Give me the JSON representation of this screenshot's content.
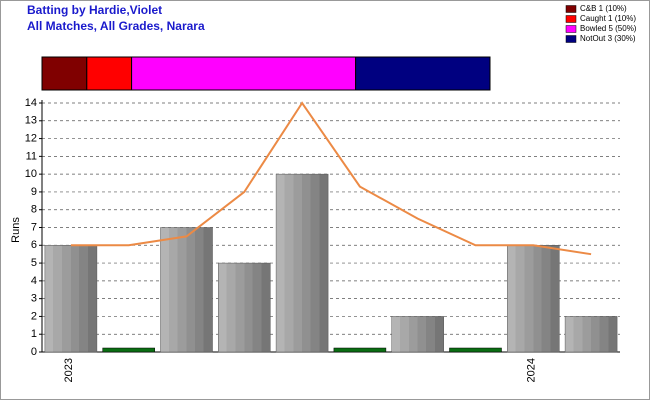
{
  "chart_data": [
    {
      "type": "stacked_hbar",
      "title": "Batting by Hardie,Violet",
      "subtitle": "All Matches, All Grades, Narara",
      "series": [
        {
          "name": "C&B 1 (10%)",
          "color": "#800000",
          "values": [
            10
          ]
        },
        {
          "name": "Caught 1 (10%)",
          "color": "#ff0000",
          "values": [
            10
          ]
        },
        {
          "name": "Bowled 5 (50%)",
          "color": "#ff00ff",
          "values": [
            50
          ]
        },
        {
          "name": "NotOut 3 (30%)",
          "color": "#000080",
          "values": [
            30
          ]
        }
      ],
      "xlim": [
        0,
        100
      ]
    },
    {
      "type": "bar",
      "y_label": "Runs",
      "categories": [
        "2023",
        null,
        null,
        null,
        null,
        null,
        null,
        null,
        "2024",
        null
      ],
      "values": [
        6,
        0,
        7,
        5,
        10,
        0,
        2,
        0,
        6,
        2
      ],
      "zero_color": "#0a6e12",
      "line": {
        "color": "#ec8a45",
        "values": [
          6,
          6,
          6.5,
          9,
          14,
          9.3,
          7.5,
          6,
          6,
          5.5
        ]
      },
      "ylim": [
        0,
        14
      ],
      "yticks": [
        0,
        1,
        2,
        3,
        4,
        5,
        6,
        7,
        8,
        9,
        10,
        11,
        12,
        13,
        14
      ],
      "grid": true
    }
  ]
}
